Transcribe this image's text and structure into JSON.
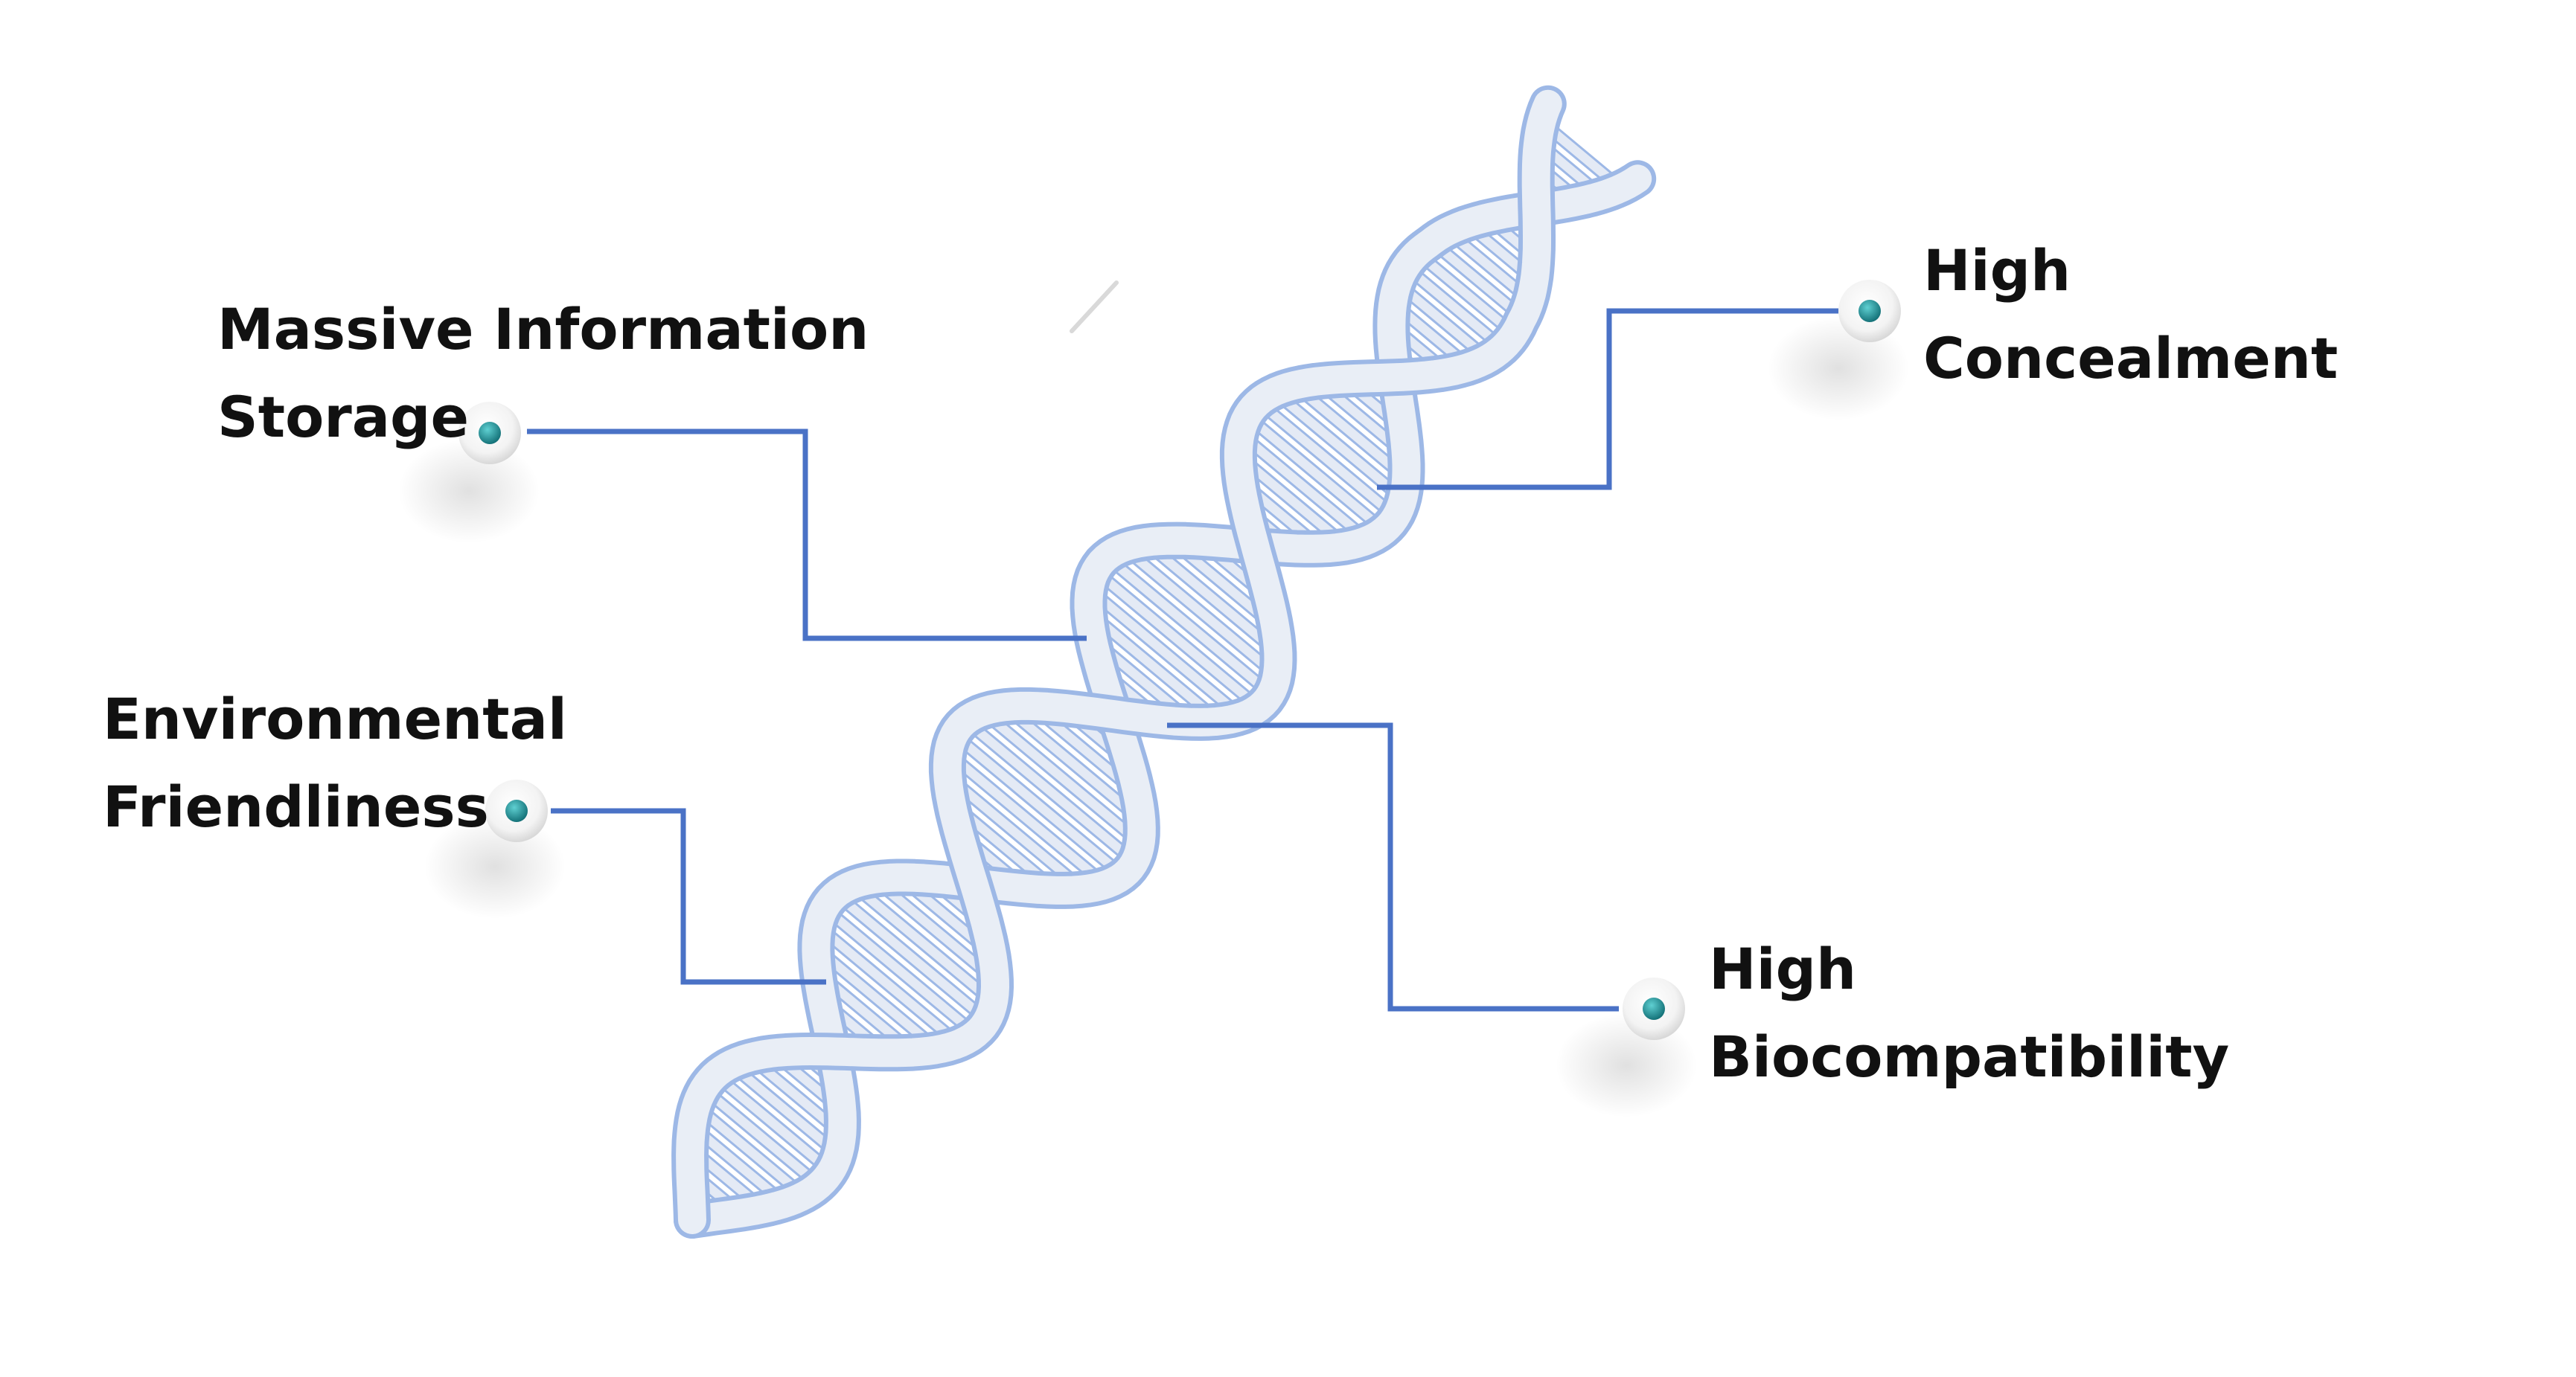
{
  "features": {
    "massive_storage": {
      "line1": "Massive Information",
      "line2": "Storage"
    },
    "environmental": {
      "line1": "Environmental",
      "line2": "Friendliness"
    },
    "concealment": {
      "line1": "High",
      "line2": "Concealment"
    },
    "biocompatibility": {
      "line1": "High",
      "line2": "Biocompatibility"
    }
  },
  "colors": {
    "connector": "#4a72c6",
    "helix_backbone": "#e9eef6",
    "helix_outline": "#9db8e6",
    "rung": "#e4eaf5",
    "marker_dot": "#1c8c91",
    "text": "#111111"
  },
  "icons": {
    "marker": "node-marker-icon",
    "graphic": "dna-double-helix"
  }
}
